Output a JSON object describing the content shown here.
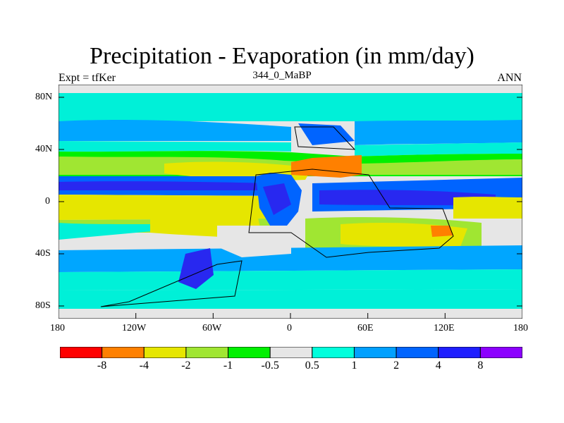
{
  "title": "Precipitation - Evaporation (in mm/day)",
  "subtitle": "344_0_MaBP",
  "left_label": "Expt = tfKer",
  "right_label": "ANN",
  "lat_ticks": [
    "80N",
    "40N",
    "0",
    "40S",
    "80S"
  ],
  "lon_ticks": [
    "180",
    "120W",
    "60W",
    "0",
    "60E",
    "120E",
    "180"
  ],
  "colorbar": {
    "labels": [
      "-8",
      "-4",
      "-2",
      "-1",
      "-0.5",
      "0.5",
      "1",
      "2",
      "4",
      "8"
    ],
    "colors": [
      "#ff0000",
      "#ff8000",
      "#e6e600",
      "#a0e632",
      "#00f000",
      "#e6e6e6",
      "#00ffdc",
      "#00a0ff",
      "#0064ff",
      "#1e1eff",
      "#8c00ff"
    ]
  },
  "palette": {
    "neutral": "#e6e6e6",
    "cyan": "#00f0d8",
    "lightblue": "#00a6ff",
    "blue": "#0064ff",
    "deepblue": "#2828f0",
    "green": "#00f000",
    "yellowgreen": "#a0e632",
    "yellow": "#e6e600",
    "orange": "#ff8000"
  }
}
